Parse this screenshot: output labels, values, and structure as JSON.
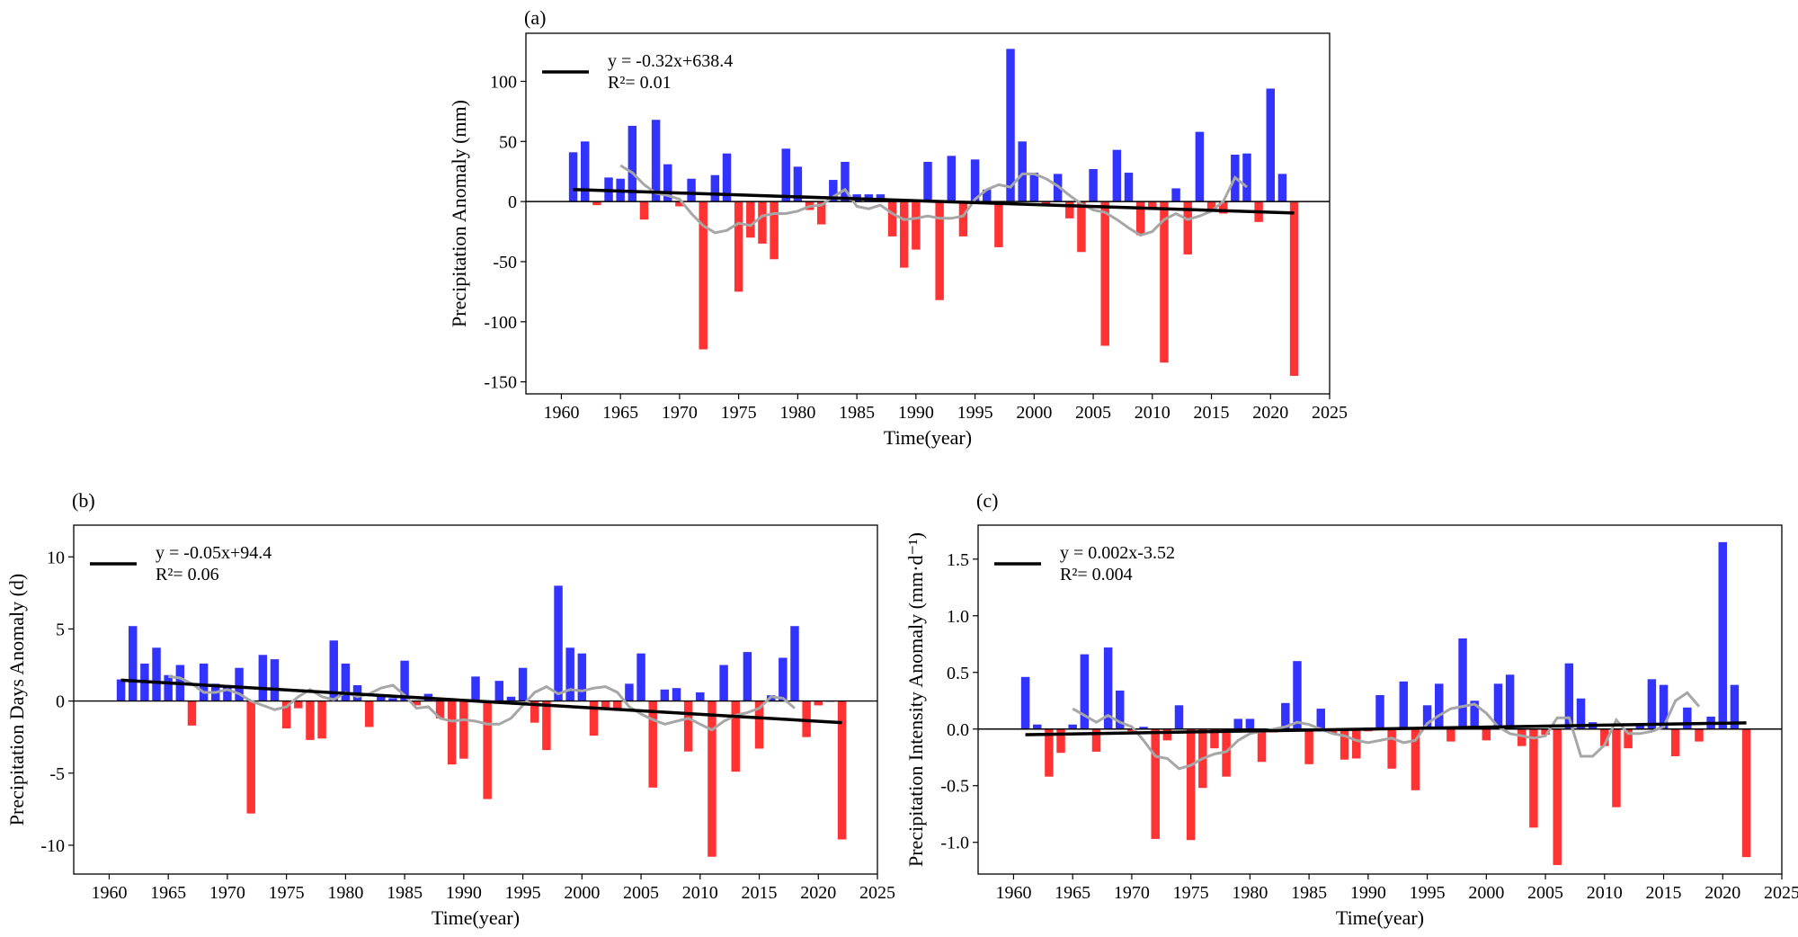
{
  "chart_data": [
    {
      "panel": "(a)",
      "type": "bar",
      "xlabel": "Time(year)",
      "ylabel": "Precipitation Anomaly (mm)",
      "xlim": [
        1957,
        2025
      ],
      "ylim": [
        -160,
        140
      ],
      "xticks": [
        1960,
        1965,
        1970,
        1975,
        1980,
        1985,
        1990,
        1995,
        2000,
        2005,
        2010,
        2015,
        2020,
        2025
      ],
      "yticks": [
        -150,
        -100,
        -50,
        0,
        50,
        100
      ],
      "years": [
        1961,
        1962,
        1963,
        1964,
        1965,
        1966,
        1967,
        1968,
        1969,
        1970,
        1971,
        1972,
        1973,
        1974,
        1975,
        1976,
        1977,
        1978,
        1979,
        1980,
        1981,
        1982,
        1983,
        1984,
        1985,
        1986,
        1987,
        1988,
        1989,
        1990,
        1991,
        1992,
        1993,
        1994,
        1995,
        1996,
        1997,
        1998,
        1999,
        2000,
        2001,
        2002,
        2003,
        2004,
        2005,
        2006,
        2007,
        2008,
        2009,
        2010,
        2011,
        2012,
        2013,
        2014,
        2015,
        2016,
        2017,
        2018,
        2019,
        2020,
        2021,
        2022
      ],
      "values": [
        41,
        50,
        -3,
        20,
        19,
        63,
        -15,
        68,
        31,
        -4,
        19,
        -123,
        22,
        40,
        -75,
        -30,
        -35,
        -48,
        44,
        29,
        -7,
        -19,
        18,
        33,
        6,
        6,
        6,
        -29,
        -55,
        -40,
        33,
        -82,
        38,
        -29,
        35,
        10,
        -38,
        127,
        50,
        24,
        -2,
        23,
        -14,
        -42,
        27,
        -120,
        43,
        24,
        -28,
        -5,
        -134,
        11,
        -44,
        58,
        -6,
        -10,
        39,
        40,
        -17,
        94,
        23,
        -145
      ],
      "moving_average": {
        "years": [
          1965,
          1966,
          1967,
          1968,
          1969,
          1970,
          1971,
          1972,
          1973,
          1974,
          1975,
          1976,
          1977,
          1978,
          1979,
          1980,
          1981,
          1982,
          1983,
          1984,
          1985,
          1986,
          1987,
          1988,
          1989,
          1990,
          1991,
          1992,
          1993,
          1994,
          1995,
          1996,
          1997,
          1998,
          1999,
          2000,
          2001,
          2002,
          2003,
          2004,
          2005,
          2006,
          2007,
          2008,
          2009,
          2010,
          2011,
          2012,
          2013,
          2014,
          2015,
          2016,
          2017,
          2018
        ],
        "values": [
          30,
          24,
          14,
          7,
          5,
          2,
          -10,
          -20,
          -26,
          -24,
          -18,
          -20,
          -12,
          -10,
          -10,
          -8,
          -4,
          -3,
          4,
          10,
          -4,
          -6,
          -3,
          -10,
          -15,
          -14,
          -12,
          -14,
          -14,
          -12,
          2,
          10,
          14,
          12,
          23,
          23,
          19,
          13,
          5,
          -2,
          -7,
          -9,
          -15,
          -22,
          -28,
          -25,
          -15,
          -10,
          -15,
          -12,
          -8,
          0,
          20,
          12
        ]
      },
      "trend": {
        "x": [
          1961,
          2022
        ],
        "y": [
          10,
          -9.5
        ]
      },
      "legend": {
        "equation": "y = -0.32x+638.4",
        "r2": "R²= 0.01"
      }
    },
    {
      "panel": "(b)",
      "type": "bar",
      "xlabel": "Time(year)",
      "ylabel": "Precipitation Days Anomaly (d)",
      "xlim": [
        1957,
        2025
      ],
      "ylim": [
        -12,
        12.2
      ],
      "xticks": [
        1960,
        1965,
        1970,
        1975,
        1980,
        1985,
        1990,
        1995,
        2000,
        2005,
        2010,
        2015,
        2020,
        2025
      ],
      "yticks": [
        -10,
        -5,
        0,
        5,
        10
      ],
      "years": [
        1961,
        1962,
        1963,
        1964,
        1965,
        1966,
        1967,
        1968,
        1969,
        1970,
        1971,
        1972,
        1973,
        1974,
        1975,
        1976,
        1977,
        1978,
        1979,
        1980,
        1981,
        1982,
        1983,
        1984,
        1985,
        1986,
        1987,
        1988,
        1989,
        1990,
        1991,
        1992,
        1993,
        1994,
        1995,
        1996,
        1997,
        1998,
        1999,
        2000,
        2001,
        2002,
        2003,
        2004,
        2005,
        2006,
        2007,
        2008,
        2009,
        2010,
        2011,
        2012,
        2013,
        2014,
        2015,
        2016,
        2017,
        2018,
        2019,
        2020,
        2021,
        2022
      ],
      "values": [
        1.5,
        5.2,
        2.6,
        3.7,
        1.8,
        2.5,
        -1.7,
        2.6,
        1.2,
        1.1,
        2.3,
        -7.8,
        3.2,
        2.9,
        -1.9,
        -0.5,
        -2.7,
        -2.6,
        4.2,
        2.6,
        1.1,
        -1.8,
        0.4,
        0.2,
        2.8,
        -0.3,
        0.5,
        -1.2,
        -4.4,
        -4.0,
        1.7,
        -6.8,
        1.4,
        0.3,
        2.3,
        -1.5,
        -3.4,
        8.0,
        3.7,
        3.3,
        -2.4,
        -0.5,
        -0.5,
        1.2,
        3.3,
        -6.0,
        0.8,
        0.9,
        -3.5,
        0.6,
        -10.8,
        2.5,
        -4.9,
        3.4,
        -3.3,
        0.4,
        3.0,
        5.2,
        -2.5,
        -0.3,
        0.0,
        -9.6
      ],
      "moving_average": {
        "years": [
          1965,
          1966,
          1967,
          1968,
          1969,
          1970,
          1971,
          1972,
          1973,
          1974,
          1975,
          1976,
          1977,
          1978,
          1979,
          1980,
          1981,
          1982,
          1983,
          1984,
          1985,
          1986,
          1987,
          1988,
          1989,
          1990,
          1991,
          1992,
          1993,
          1994,
          1995,
          1996,
          1997,
          1998,
          1999,
          2000,
          2001,
          2002,
          2003,
          2004,
          2005,
          2006,
          2007,
          2008,
          2009,
          2010,
          2011,
          2012,
          2013,
          2014,
          2015,
          2016,
          2017,
          2018
        ],
        "values": [
          1.7,
          1.6,
          1.2,
          0.6,
          0.6,
          0.8,
          0.5,
          0.0,
          -0.3,
          -0.6,
          -0.4,
          0.3,
          0.8,
          0.3,
          0.1,
          0.6,
          0.3,
          0.5,
          0.9,
          1.1,
          0.4,
          -0.5,
          -0.4,
          -1.2,
          -1.4,
          -1.3,
          -1.4,
          -1.6,
          -1.6,
          -1.2,
          -0.3,
          0.6,
          1.0,
          0.5,
          0.8,
          0.7,
          0.9,
          1.0,
          0.6,
          -0.4,
          -0.9,
          -1.3,
          -1.6,
          -1.4,
          -1.2,
          -1.6,
          -2.0,
          -1.4,
          -1.0,
          -0.8,
          -0.5,
          0.3,
          0.2,
          -0.5
        ]
      },
      "trend": {
        "x": [
          1961,
          2022
        ],
        "y": [
          1.45,
          -1.5
        ]
      },
      "legend": {
        "equation": "y = -0.05x+94.4",
        "r2": "R²= 0.06"
      }
    },
    {
      "panel": "(c)",
      "type": "bar",
      "xlabel": "Time(year)",
      "ylabel": "Precipitation Intensity Anomaly (mm·d⁻¹)",
      "xlim": [
        1957,
        2025
      ],
      "ylim": [
        -1.28,
        1.8
      ],
      "xticks": [
        1960,
        1965,
        1970,
        1975,
        1980,
        1985,
        1990,
        1995,
        2000,
        2005,
        2010,
        2015,
        2020,
        2025
      ],
      "yticks": [
        -1.0,
        -0.5,
        0.0,
        0.5,
        1.0,
        1.5
      ],
      "ytick_labels": [
        "-1.0",
        "-0.5",
        "0.0",
        "0.5",
        "1.0",
        "1.5"
      ],
      "years": [
        1961,
        1962,
        1963,
        1964,
        1965,
        1966,
        1967,
        1968,
        1969,
        1970,
        1971,
        1972,
        1973,
        1974,
        1975,
        1976,
        1977,
        1978,
        1979,
        1980,
        1981,
        1982,
        1983,
        1984,
        1985,
        1986,
        1987,
        1988,
        1989,
        1990,
        1991,
        1992,
        1993,
        1994,
        1995,
        1996,
        1997,
        1998,
        1999,
        2000,
        2001,
        2002,
        2003,
        2004,
        2005,
        2006,
        2007,
        2008,
        2009,
        2010,
        2011,
        2012,
        2013,
        2014,
        2015,
        2016,
        2017,
        2018,
        2019,
        2020,
        2021,
        2022
      ],
      "values": [
        0.46,
        0.04,
        -0.42,
        -0.21,
        0.04,
        0.66,
        -0.2,
        0.72,
        0.34,
        -0.02,
        0.02,
        -0.97,
        -0.1,
        0.21,
        -0.98,
        -0.52,
        -0.17,
        -0.42,
        0.09,
        0.09,
        -0.29,
        -0.03,
        0.23,
        0.6,
        -0.31,
        0.18,
        -0.04,
        -0.27,
        -0.26,
        -0.02,
        0.3,
        -0.35,
        0.42,
        -0.54,
        0.21,
        0.4,
        -0.11,
        0.8,
        0.25,
        -0.1,
        0.4,
        0.48,
        -0.15,
        -0.87,
        -0.05,
        -1.2,
        0.58,
        0.27,
        0.06,
        -0.15,
        -0.69,
        -0.17,
        0.04,
        0.44,
        0.39,
        -0.24,
        0.19,
        -0.11,
        0.11,
        1.65,
        0.39,
        -1.13
      ],
      "moving_average": {
        "years": [
          1965,
          1966,
          1967,
          1968,
          1969,
          1970,
          1971,
          1972,
          1973,
          1974,
          1975,
          1976,
          1977,
          1978,
          1979,
          1980,
          1981,
          1982,
          1983,
          1984,
          1985,
          1986,
          1987,
          1988,
          1989,
          1990,
          1991,
          1992,
          1993,
          1994,
          1995,
          1996,
          1997,
          1998,
          1999,
          2000,
          2001,
          2002,
          2003,
          2004,
          2005,
          2006,
          2007,
          2008,
          2009,
          2010,
          2011,
          2012,
          2013,
          2014,
          2015,
          2016,
          2017,
          2018
        ],
        "values": [
          0.18,
          0.12,
          0.06,
          0.12,
          0.06,
          0.02,
          -0.1,
          -0.24,
          -0.26,
          -0.35,
          -0.32,
          -0.26,
          -0.22,
          -0.2,
          -0.1,
          -0.04,
          -0.02,
          0.0,
          0.02,
          0.06,
          0.04,
          0.0,
          -0.04,
          -0.06,
          -0.1,
          -0.12,
          -0.1,
          -0.08,
          -0.12,
          -0.1,
          0.05,
          0.12,
          0.18,
          0.2,
          0.22,
          0.14,
          0.02,
          -0.04,
          -0.06,
          -0.08,
          -0.06,
          0.1,
          0.1,
          -0.24,
          -0.24,
          -0.14,
          0.08,
          -0.04,
          -0.04,
          -0.02,
          0.02,
          0.25,
          0.32,
          0.2
        ]
      },
      "trend": {
        "x": [
          1961,
          2022
        ],
        "y": [
          -0.05,
          0.055
        ]
      },
      "legend": {
        "equation": "y = 0.002x-3.52",
        "r2": "R²= 0.004"
      }
    }
  ],
  "colors": {
    "positive": "#3333ff",
    "negative": "#ff3333",
    "trend": "#000000",
    "moving_average": "#a6a6a6"
  }
}
